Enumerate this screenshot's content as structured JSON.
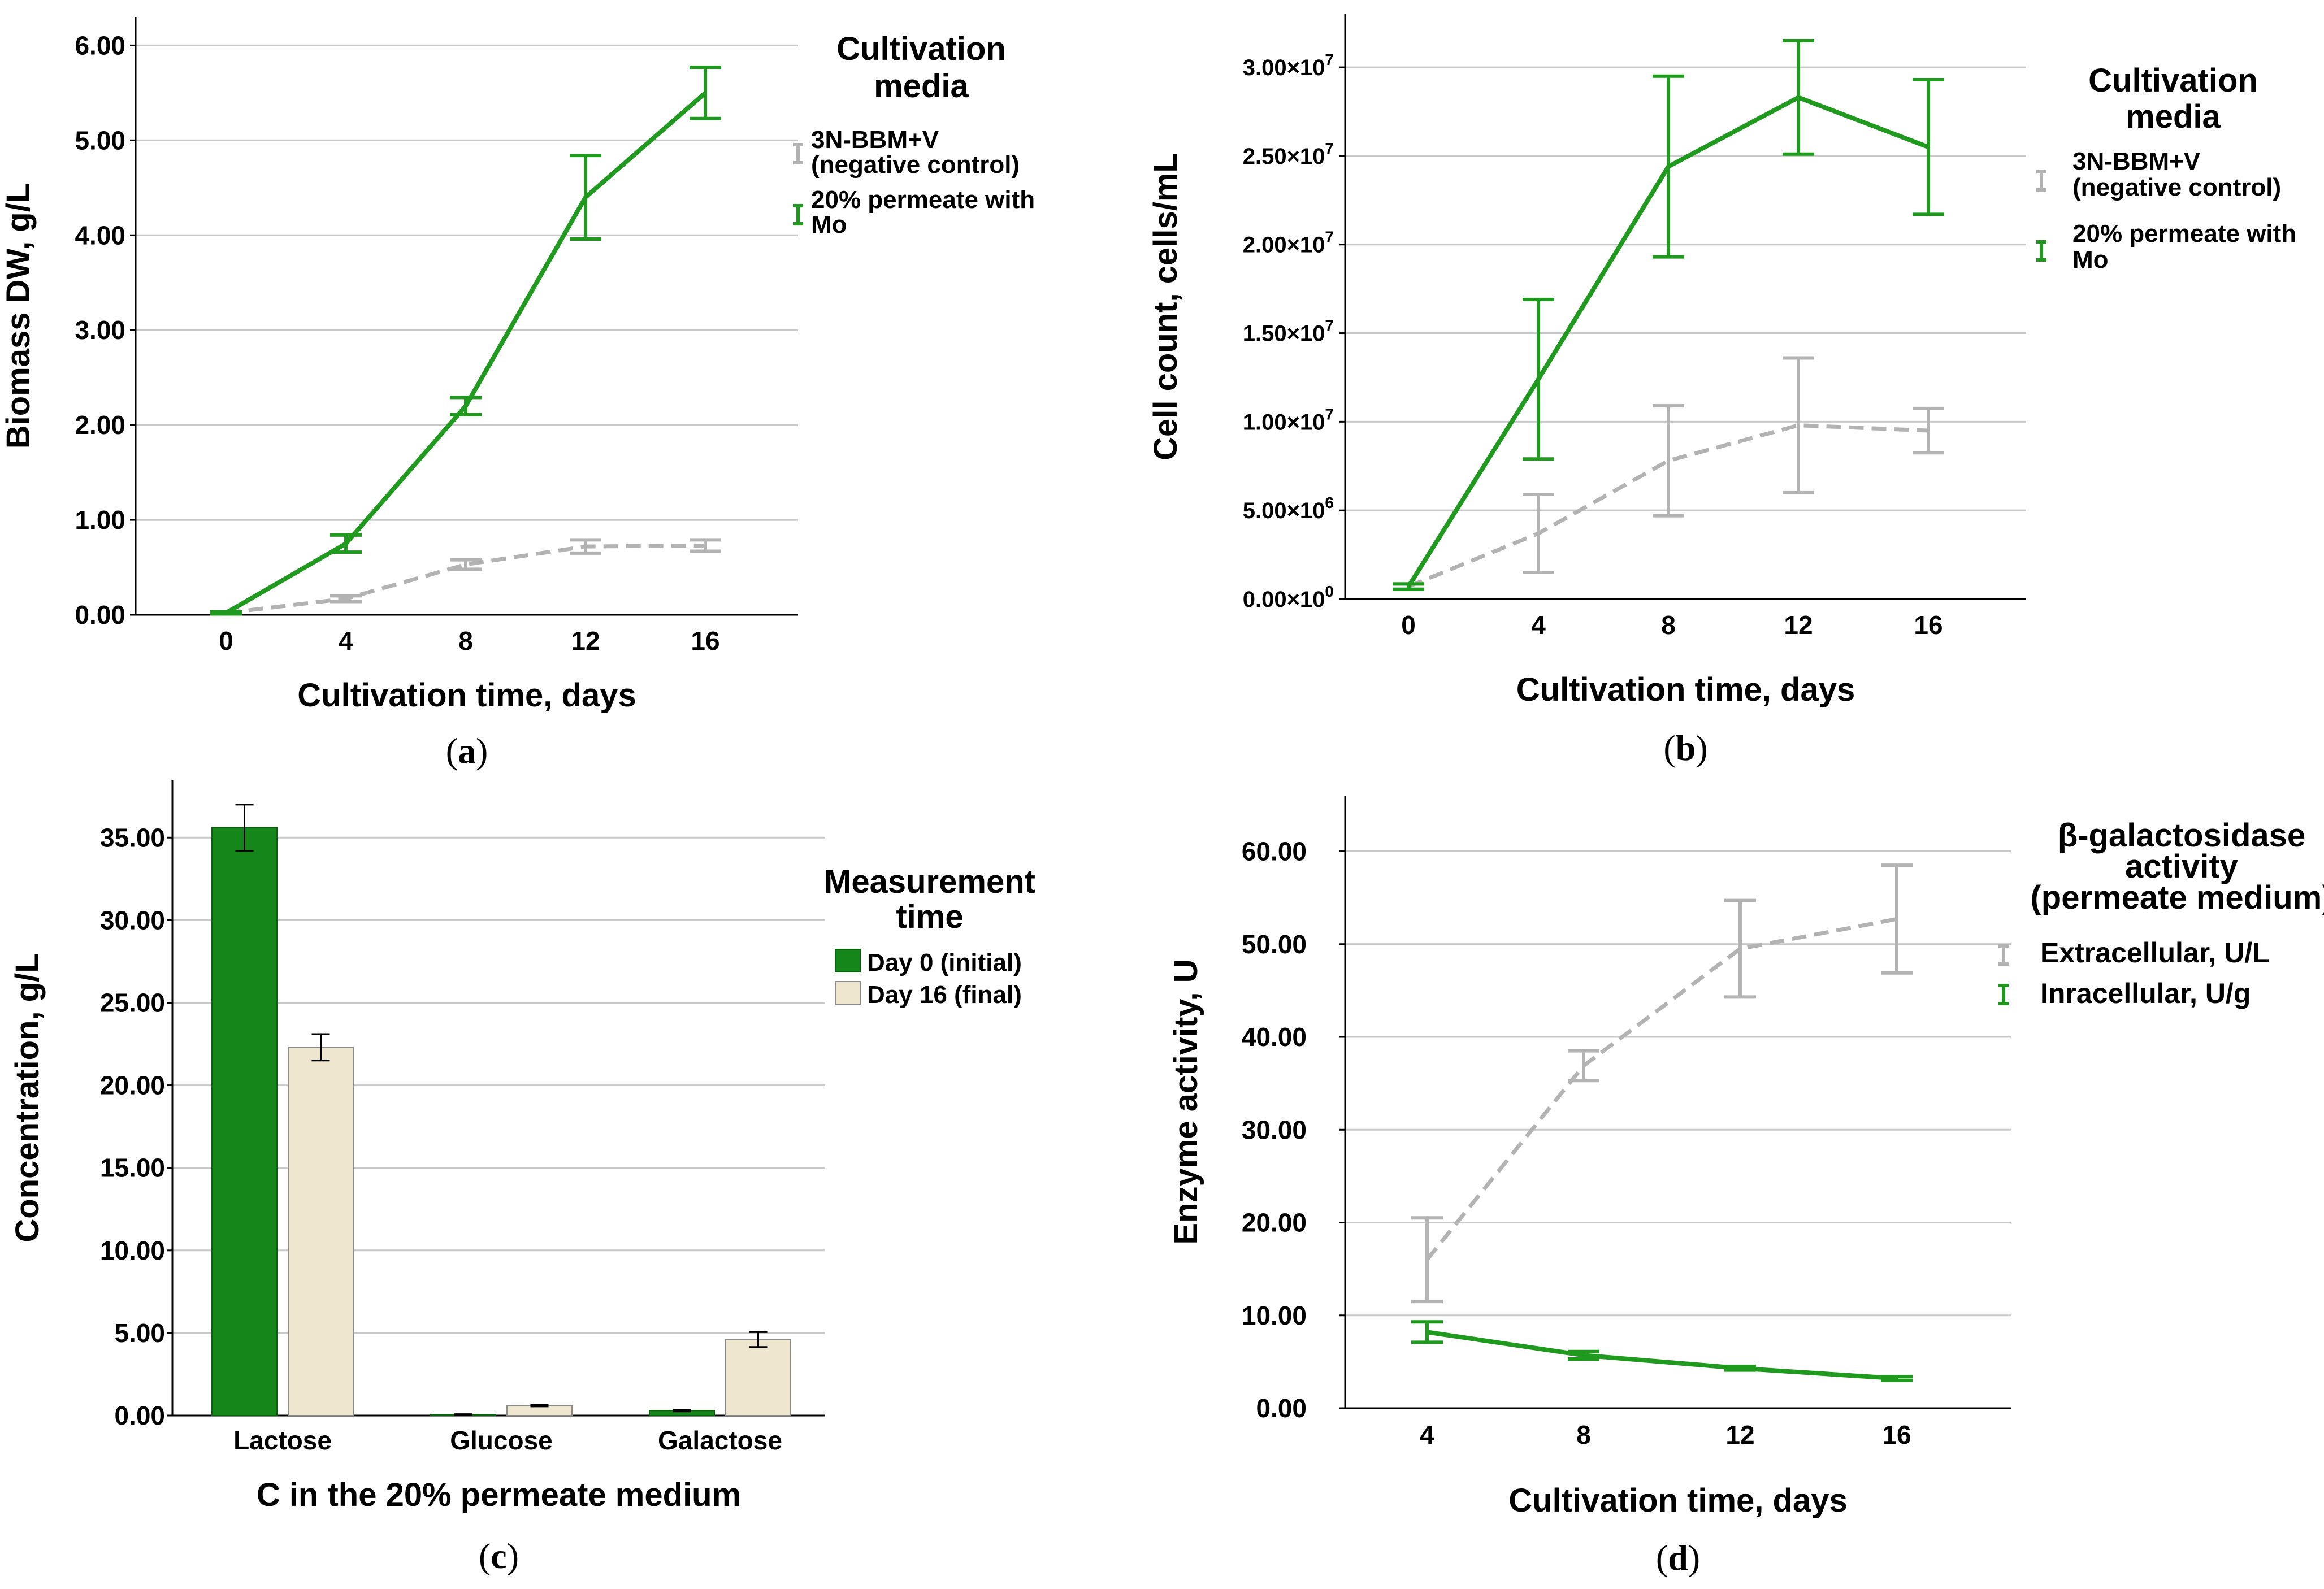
{
  "figure": {
    "colors": {
      "green": "#1f9a1f",
      "gray": "#b3b3b3",
      "bar_green": "#15861a",
      "bar_beige": "#efe6d0"
    }
  },
  "chart_data": [
    {
      "id": "a",
      "type": "line",
      "panel_label_open": "(",
      "panel_label_letter": "a",
      "panel_label_close": ")",
      "xlabel": "Cultivation time, days",
      "ylabel": "Biomass DW, g/L",
      "x": [
        0,
        4,
        8,
        12,
        16
      ],
      "x_tick_labels": [
        "0",
        "4",
        "8",
        "12",
        "16"
      ],
      "ylim": [
        0,
        6.3
      ],
      "y_ticks": [
        0,
        1,
        2,
        3,
        4,
        5,
        6
      ],
      "y_tick_labels": [
        "0.00",
        "1.00",
        "2.00",
        "3.00",
        "4.00",
        "5.00",
        "6.00"
      ],
      "legend_title_lines": [
        "Cultivation",
        "media"
      ],
      "series": [
        {
          "name_lines": [
            "3N-BBM+V",
            "(negative control)"
          ],
          "style": "dashed",
          "color": "#b3b3b3",
          "values": [
            0.02,
            0.17,
            0.53,
            0.72,
            0.73
          ],
          "errors": [
            0.01,
            0.03,
            0.05,
            0.07,
            0.06
          ]
        },
        {
          "name_lines": [
            "20% permeate with",
            "Mo"
          ],
          "style": "solid",
          "color": "#1f9a1f",
          "values": [
            0.02,
            0.75,
            2.2,
            4.4,
            5.5
          ],
          "errors": [
            0.01,
            0.09,
            0.09,
            0.44,
            0.27
          ]
        }
      ]
    },
    {
      "id": "b",
      "type": "line",
      "panel_label_open": "(",
      "panel_label_letter": "b",
      "panel_label_close": ")",
      "xlabel": "Cultivation time, days",
      "ylabel": "Cell count, cells/mL",
      "x": [
        0,
        4,
        8,
        12,
        16
      ],
      "x_tick_labels": [
        "0",
        "4",
        "8",
        "12",
        "16"
      ],
      "ylim": [
        0,
        33000000
      ],
      "y_ticks": [
        0,
        5000000,
        10000000,
        15000000,
        20000000,
        25000000,
        30000000
      ],
      "y_tick_mantissas": [
        "0.00×10",
        "5.00×10",
        "1.00×10",
        "1.50×10",
        "2.00×10",
        "2.50×10",
        "3.00×10"
      ],
      "y_tick_exponents": [
        "0",
        "6",
        "7",
        "7",
        "7",
        "7",
        "7"
      ],
      "legend_title_lines": [
        "Cultivation",
        "media"
      ],
      "series": [
        {
          "name_lines": [
            "3N-BBM+V",
            "(negative control)"
          ],
          "style": "dashed",
          "color": "#b3b3b3",
          "values": [
            700000,
            3700000,
            7800000,
            9800000,
            9500000
          ],
          "errors": [
            150000,
            2200000,
            3100000,
            3800000,
            1250000
          ]
        },
        {
          "name_lines": [
            "20% permeate with",
            "Mo"
          ],
          "style": "solid",
          "color": "#1f9a1f",
          "values": [
            700000,
            12400000,
            24400000,
            28300000,
            25500000
          ],
          "errors": [
            150000,
            4500000,
            5100000,
            3200000,
            3800000
          ]
        }
      ]
    },
    {
      "id": "c",
      "type": "bar",
      "panel_label_open": "(",
      "panel_label_letter": "c",
      "panel_label_close": ")",
      "xlabel": "C in the 20% permeate medium",
      "ylabel": "Concentration, g/L",
      "categories": [
        "Lactose",
        "Glucose",
        "Galactose"
      ],
      "ylim": [
        0,
        38.5
      ],
      "y_ticks": [
        0,
        5,
        10,
        15,
        20,
        25,
        30,
        35
      ],
      "y_tick_labels": [
        "0.00",
        "5.00",
        "10.00",
        "15.00",
        "20.00",
        "25.00",
        "30.00",
        "35.00"
      ],
      "legend_title_lines": [
        "Measurement",
        "time"
      ],
      "series": [
        {
          "name": "Day 0 (initial)",
          "color": "#15861a",
          "values": [
            35.6,
            0.05,
            0.3
          ],
          "errors": [
            1.4,
            0.03,
            0.05
          ]
        },
        {
          "name": "Day 16 (final)",
          "color": "#efe6d0",
          "values": [
            22.3,
            0.6,
            4.6
          ],
          "errors": [
            0.8,
            0.05,
            0.45
          ]
        }
      ]
    },
    {
      "id": "d",
      "type": "line",
      "panel_label_open": "(",
      "panel_label_letter": "d",
      "panel_label_close": ")",
      "xlabel": "Cultivation time, days",
      "ylabel": "Enzyme activity, U",
      "x": [
        4,
        8,
        12,
        16
      ],
      "x_tick_labels": [
        "4",
        "8",
        "12",
        "16"
      ],
      "ylim": [
        0,
        66
      ],
      "y_ticks": [
        0,
        10,
        20,
        30,
        40,
        50,
        60
      ],
      "y_tick_labels": [
        "0.00",
        "10.00",
        "20.00",
        "30.00",
        "40.00",
        "50.00",
        "60.00"
      ],
      "legend_title_lines": [
        "β-galactosidase",
        "activity",
        "(permeate medium)"
      ],
      "series": [
        {
          "name_lines": [
            "Extracellular, U/L"
          ],
          "style": "dashed",
          "color": "#b3b3b3",
          "values": [
            16.0,
            36.9,
            49.5,
            52.7
          ],
          "errors": [
            4.5,
            1.6,
            5.2,
            5.8
          ]
        },
        {
          "name_lines": [
            "Inracellular, U/g"
          ],
          "style": "solid",
          "color": "#1f9a1f",
          "values": [
            8.2,
            5.7,
            4.3,
            3.2
          ],
          "errors": [
            1.1,
            0.4,
            0.2,
            0.2
          ]
        }
      ]
    }
  ]
}
